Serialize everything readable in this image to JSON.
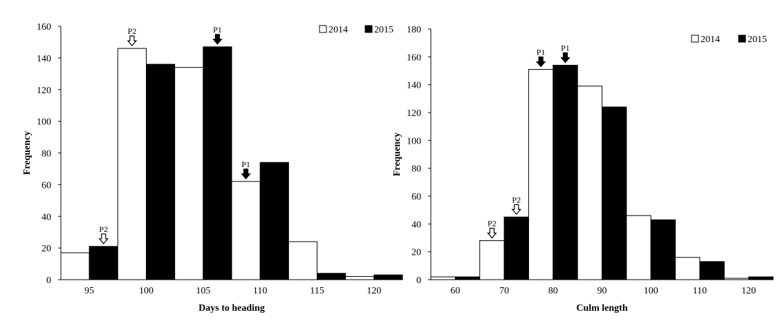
{
  "chart_data": [
    {
      "type": "bar",
      "xlabel": "Days to heading",
      "ylabel": "Frequency",
      "ylim": [
        0,
        160
      ],
      "ytick_step": 20,
      "xlim": [
        92.5,
        122.5
      ],
      "bin_edges": [
        92.5,
        97.5,
        102.5,
        107.5,
        112.5,
        117.5,
        122.5
      ],
      "xticks": [
        95,
        100,
        105,
        110,
        115,
        120
      ],
      "legend_position": "top-right",
      "series": [
        {
          "name": "2014",
          "fill": "#ffffff",
          "values": [
            17,
            146,
            134,
            62,
            24,
            2
          ]
        },
        {
          "name": "2015",
          "fill": "#000000",
          "values": [
            21,
            136,
            147,
            74,
            4,
            3
          ]
        }
      ],
      "markers": [
        {
          "label": "P2",
          "style": "hollow",
          "series": 1,
          "bin": 0
        },
        {
          "label": "P2",
          "style": "hollow",
          "series": 0,
          "bin": 1
        },
        {
          "label": "P1",
          "style": "solid",
          "series": 1,
          "bin": 2
        },
        {
          "label": "P1",
          "style": "solid",
          "series": 0,
          "bin": 3
        }
      ]
    },
    {
      "type": "bar",
      "xlabel": "Culm length",
      "ylabel": "Frequency",
      "ylim": [
        0,
        180
      ],
      "ytick_step": 20,
      "xlim": [
        55,
        125
      ],
      "bin_edges": [
        55,
        65,
        75,
        85,
        95,
        105,
        115,
        125
      ],
      "xticks": [
        60,
        70,
        80,
        90,
        100,
        110,
        120
      ],
      "legend_position": "top-right",
      "series": [
        {
          "name": "2014",
          "fill": "#ffffff",
          "values": [
            2,
            28,
            151,
            139,
            46,
            16,
            1
          ]
        },
        {
          "name": "2015",
          "fill": "#000000",
          "values": [
            2,
            45,
            154,
            124,
            43,
            13,
            2
          ]
        }
      ],
      "markers": [
        {
          "label": "P2",
          "style": "hollow",
          "series": 0,
          "bin": 1
        },
        {
          "label": "P2",
          "style": "hollow",
          "series": 1,
          "bin": 1
        },
        {
          "label": "P1",
          "style": "solid",
          "series": 0,
          "bin": 2
        },
        {
          "label": "P1",
          "style": "solid",
          "series": 1,
          "bin": 2
        }
      ]
    }
  ]
}
